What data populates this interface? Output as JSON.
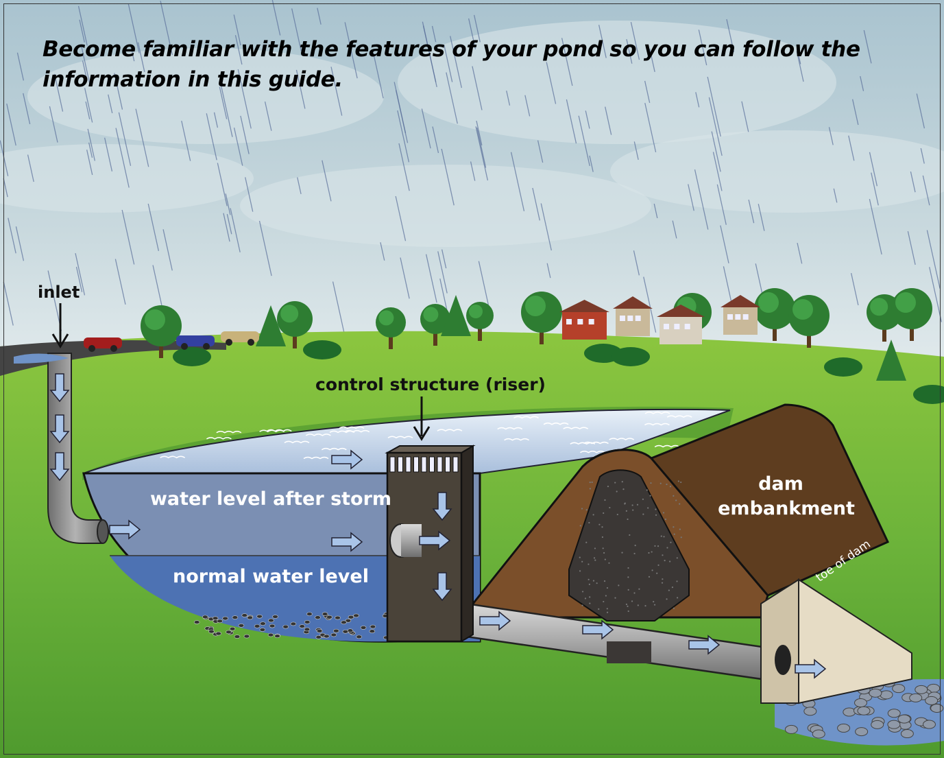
{
  "header": {
    "title": "Become familiar with the features of your pond so you can follow the information in this guide."
  },
  "labels": {
    "inlet": "inlet",
    "control_structure": "control structure (riser)",
    "water_after_storm": "water level after storm",
    "normal_water": "normal water level",
    "dam_embankment": [
      "dam",
      "embankment"
    ],
    "toe_of_dam": "toe of dam"
  }
}
